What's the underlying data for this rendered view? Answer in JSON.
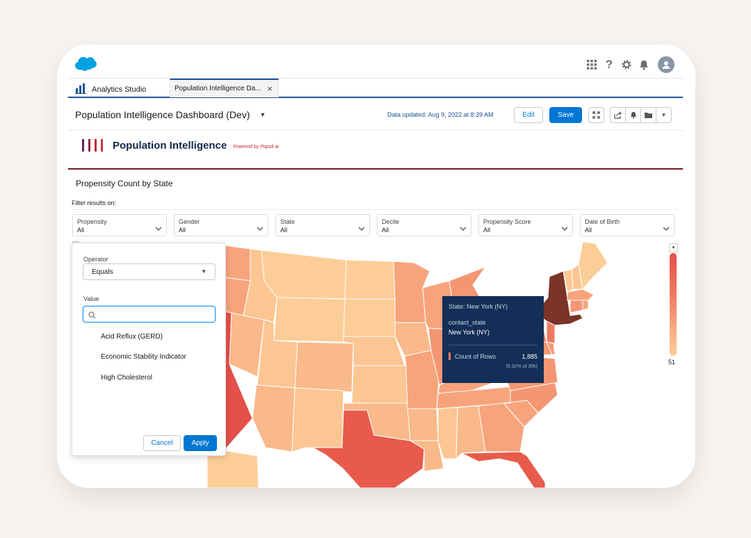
{
  "app": {
    "name": "Analytics Studio"
  },
  "tab": {
    "label": "Population Intelligence Da...",
    "close": "×"
  },
  "dashboard": {
    "title": "Population Intelligence Dashboard (Dev)",
    "updated": "Data updated: Aug 9, 2022 at 8:39 AM",
    "edit_label": "Edit",
    "save_label": "Save"
  },
  "brand": {
    "name": "Population Intelligence",
    "powered": "Powered by Populi.ai",
    "bar_colors": [
      "#6b1f5f",
      "#8e1f3f",
      "#c0282e",
      "#d1333a"
    ]
  },
  "widget": {
    "title": "Propensity Count by State",
    "filter_label": "Filter results on:"
  },
  "filters": [
    {
      "label": "Propensity",
      "value": "All"
    },
    {
      "label": "Gender",
      "value": "All"
    },
    {
      "label": "State",
      "value": "All"
    },
    {
      "label": "Decile",
      "value": "All"
    },
    {
      "label": "Propensity Score",
      "value": "All"
    },
    {
      "label": "Date of Birth",
      "value": "All"
    }
  ],
  "popover": {
    "operator_label": "Operator",
    "operator_value": "Equals",
    "value_label": "Value",
    "search_value": "",
    "options": [
      "Acid Reflux (GERD)",
      "Economic Stability Indicator",
      "High Cholesterol"
    ],
    "cancel_label": "Cancel",
    "apply_label": "Apply"
  },
  "tooltip": {
    "state_line": "State: New York (NY)",
    "field_name": "contact_state",
    "field_value": "New York (NY)",
    "metric_label": "Count of Rows",
    "metric_value": "1,885",
    "metric_pct": "(6.32% of 30k)"
  },
  "legend": {
    "min_label": "51"
  },
  "colors": {
    "accent": "#0176d3",
    "brand_blue": "#1b5297",
    "tooltip_bg": "#142f57",
    "map_low": "#fdcd97",
    "map_mid": "#f8ad82",
    "map_high": "#e4504a",
    "map_max": "#7a3428"
  },
  "icons": [
    "salesforce-cloud-logo",
    "app-launcher-icon",
    "help-icon",
    "setup-gear-icon",
    "notifications-bell-icon",
    "avatar-icon",
    "analytics-app-icon",
    "expand-icon",
    "share-icon",
    "subscribe-bell-icon",
    "folder-icon",
    "chevron-down-icon",
    "search-icon"
  ]
}
